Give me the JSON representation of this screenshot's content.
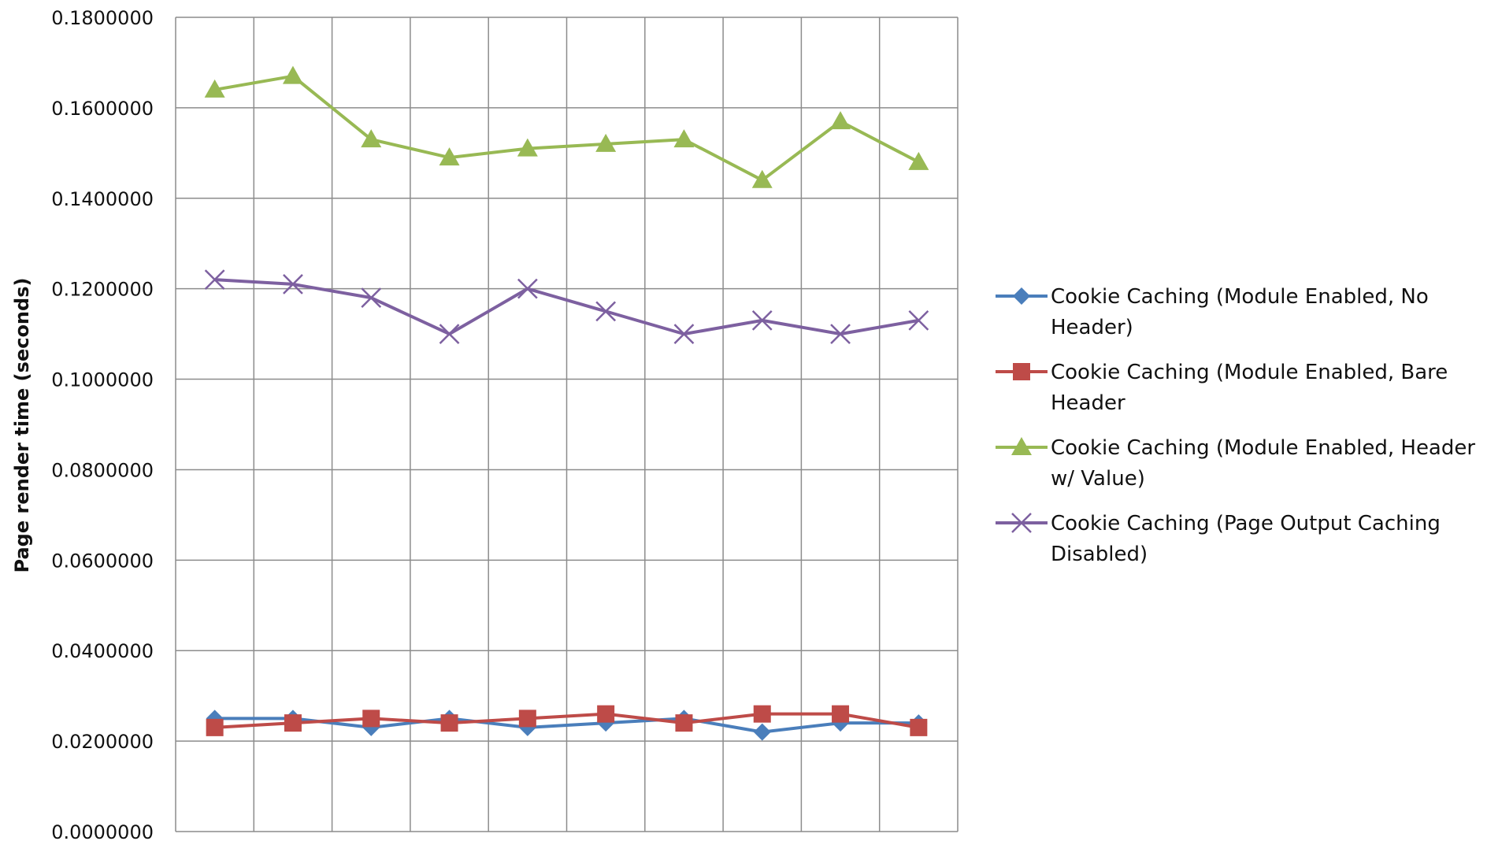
{
  "chart_data": {
    "type": "line",
    "title": "",
    "xlabel": "",
    "ylabel": "Page render time (seconds)",
    "x": [
      1,
      2,
      3,
      4,
      5,
      6,
      7,
      8,
      9,
      10
    ],
    "ylim": [
      0,
      0.18
    ],
    "yticks": [
      "0.0000000",
      "0.0200000",
      "0.0400000",
      "0.0600000",
      "0.0800000",
      "0.1000000",
      "0.1200000",
      "0.1400000",
      "0.1600000",
      "0.1800000"
    ],
    "grid": true,
    "legend_position": "right",
    "series": [
      {
        "name": "Cookie Caching (Module Enabled, No Header)",
        "legend_lines": [
          "Cookie Caching (Module Enabled, No",
          "Header)"
        ],
        "color": "#4a7ebb",
        "marker": "diamond",
        "values": [
          0.025,
          0.025,
          0.023,
          0.025,
          0.023,
          0.024,
          0.025,
          0.022,
          0.024,
          0.024
        ]
      },
      {
        "name": "Cookie Caching (Module Enabled, Bare Header)",
        "legend_lines": [
          "Cookie Caching (Module Enabled, Bare",
          "Header"
        ],
        "color": "#be4b48",
        "marker": "square",
        "values": [
          0.023,
          0.024,
          0.025,
          0.024,
          0.025,
          0.026,
          0.024,
          0.026,
          0.026,
          0.023
        ]
      },
      {
        "name": "Cookie Caching (Module Enabled, Header w/ Value)",
        "legend_lines": [
          "Cookie Caching (Module Enabled, Header",
          "w/ Value)"
        ],
        "color": "#98b954",
        "marker": "triangle",
        "values": [
          0.164,
          0.167,
          0.153,
          0.149,
          0.151,
          0.152,
          0.153,
          0.144,
          0.157,
          0.148
        ]
      },
      {
        "name": "Cookie Caching (Page Output Caching Disabled)",
        "legend_lines": [
          "Cookie Caching (Page Output Caching",
          "Disabled)"
        ],
        "color": "#7d60a0",
        "marker": "x",
        "values": [
          0.122,
          0.121,
          0.118,
          0.11,
          0.12,
          0.115,
          0.11,
          0.113,
          0.11,
          0.113
        ]
      }
    ]
  }
}
